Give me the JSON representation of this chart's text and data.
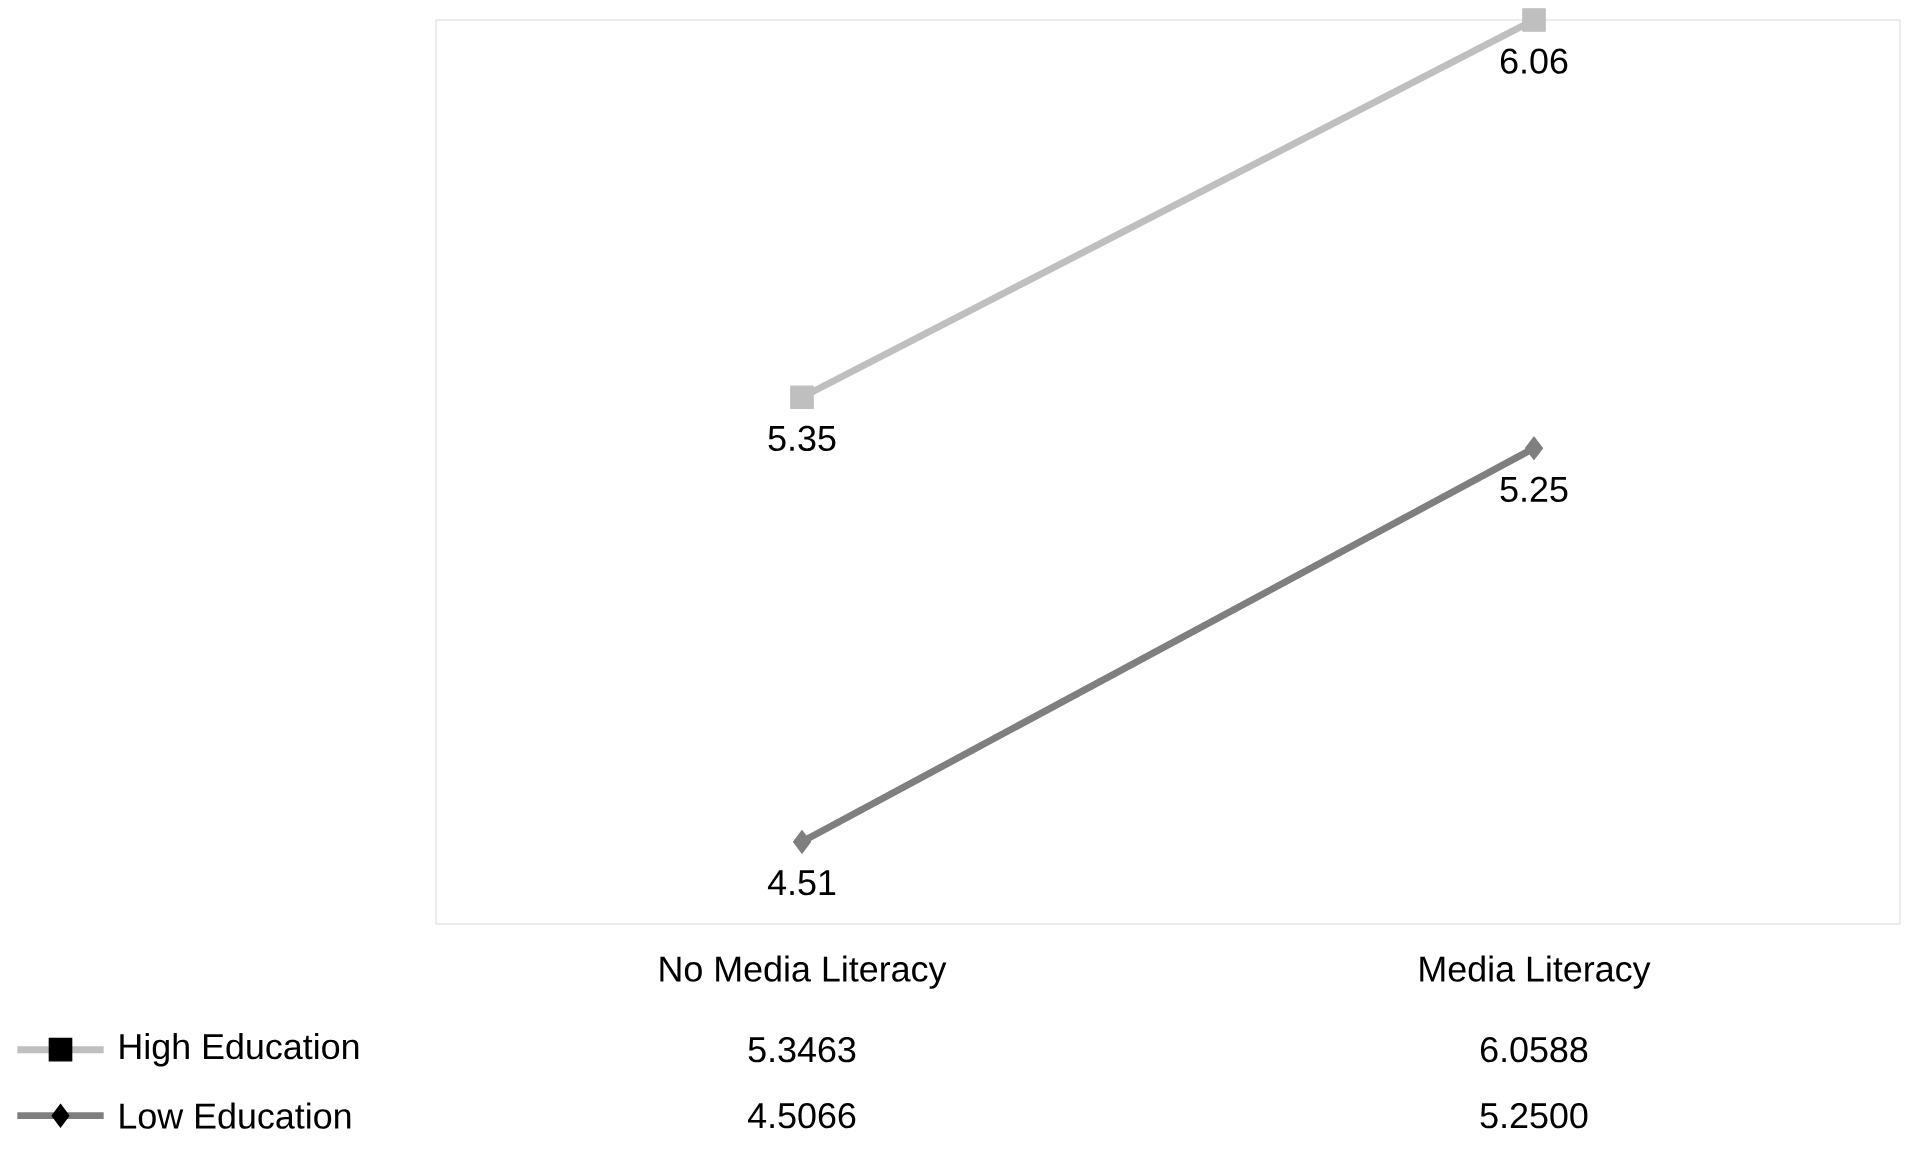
{
  "chart_data": {
    "type": "line",
    "categories": [
      "No Media Literacy",
      "Media Literacy"
    ],
    "series": [
      {
        "name": "High Education",
        "color": "#bfbfbf",
        "marker": "square",
        "values": [
          5.3463,
          6.0588
        ],
        "value_labels": [
          "5.3463",
          "6.0588"
        ]
      },
      {
        "name": "Low Education",
        "color": "#7f7f7f",
        "marker": "diamond",
        "values": [
          4.5066,
          5.25
        ],
        "value_labels": [
          "4.5066",
          "5.2500"
        ]
      }
    ],
    "annotations": [
      {
        "text": "5.35",
        "x": "No Media Literacy",
        "y": 5.3463
      },
      {
        "text": "6.06",
        "x": "Media Literacy",
        "y": 6.0588
      },
      {
        "text": "4.51",
        "x": "No Media Literacy",
        "y": 4.5066
      },
      {
        "text": "5.25",
        "x": "Media Literacy",
        "y": 5.25
      }
    ],
    "legend": "bottom",
    "tick_labels": "x"
  }
}
